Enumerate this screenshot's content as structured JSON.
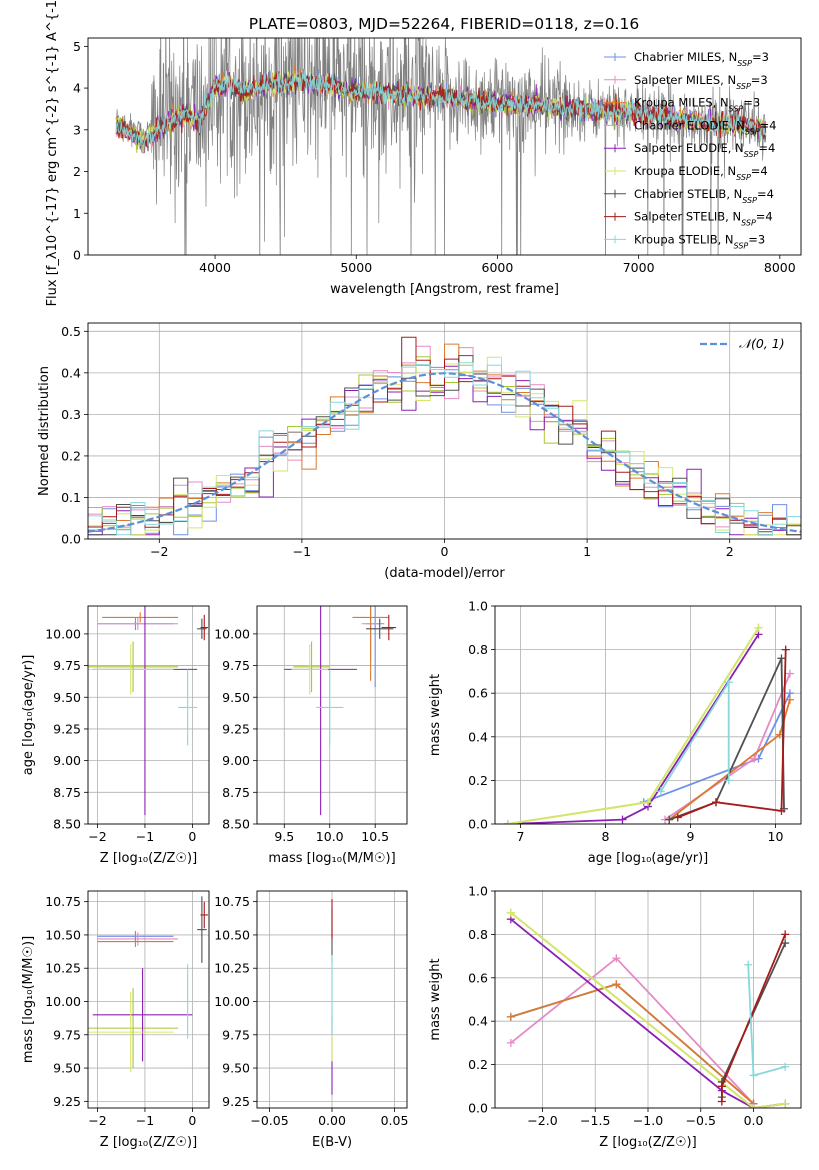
{
  "figure_title": "PLATE=0803, MJD=52264, FIBERID=0118, z=0.16",
  "colors": {
    "Chabrier MILES": "#6f8fe8",
    "Salpeter MILES": "#e58bc4",
    "Kroupa MILES": "#d97a2e",
    "Chabrier ELODIE": "#a8c832",
    "Salpeter ELODIE": "#8b1fb5",
    "Kroupa ELODIE": "#d6e66a",
    "Chabrier STELIB": "#505050",
    "Salpeter STELIB": "#a81a1a",
    "Kroupa STELIB": "#86d8dc",
    "data": "#808080",
    "normal": "#5b8fd6"
  },
  "chart_data": [
    {
      "id": "spectrum",
      "type": "line",
      "xlabel": "wavelength [Angstrom, rest frame]",
      "ylabel": "Flux [f_λ10^{-17} erg cm^{-2} s^{-1} A^{-1}]",
      "xlim": [
        3100,
        8150
      ],
      "ylim": [
        0,
        5.2
      ],
      "xticks": [
        4000,
        5000,
        6000,
        7000,
        8000
      ],
      "yticks": [
        0,
        1,
        2,
        3,
        4,
        5
      ],
      "legend_position": "right",
      "series_names": [
        "Chabrier MILES, N_SSP=3",
        "Salpeter MILES, N_SSP=3",
        "Kroupa MILES, N_SSP=3",
        "Chabrier ELODIE, N_SSP=4",
        "Salpeter ELODIE, N_SSP=4",
        "Kroupa ELODIE, N_SSP=4",
        "Chabrier STELIB, N_SSP=4",
        "Salpeter STELIB, N_SSP=4",
        "Kroupa STELIB, N_SSP=3"
      ],
      "model_continuum": {
        "x": [
          3300,
          3400,
          3500,
          3600,
          3700,
          3800,
          3900,
          4000,
          4100,
          4200,
          4300,
          4400,
          4500,
          4600,
          4700,
          4800,
          4900,
          5000,
          5200,
          5400,
          5600,
          5800,
          6000,
          6200,
          6400,
          6600,
          6800,
          7000,
          7200,
          7400,
          7600,
          7800,
          7900
        ],
        "y": [
          3.3,
          3.1,
          2.9,
          3.2,
          3.4,
          3.6,
          3.3,
          4.0,
          4.1,
          3.9,
          4.0,
          4.1,
          4.1,
          4.2,
          4.1,
          4.1,
          4.0,
          3.9,
          3.9,
          3.8,
          3.8,
          3.7,
          3.65,
          3.6,
          3.55,
          3.5,
          3.45,
          3.4,
          3.3,
          3.2,
          3.15,
          3.1,
          3.0
        ]
      }
    },
    {
      "id": "residuals",
      "type": "histogram",
      "xlabel": "(data-model)/error",
      "ylabel": "Normed distribution",
      "xlim": [
        -2.5,
        2.5
      ],
      "ylim": [
        0,
        0.52
      ],
      "xticks": [
        -2,
        -1,
        0,
        1,
        2
      ],
      "yticks": [
        0.0,
        0.1,
        0.2,
        0.3,
        0.4,
        0.5
      ],
      "legend": "𝒩(0, 1)",
      "legend_position": "top-right",
      "grid": true
    },
    {
      "id": "age-vs-Z",
      "type": "errorbar",
      "xlabel": "Z [log₁₀(Z/Z☉)]",
      "ylabel": "age [log₁₀(age/yr)]",
      "xlim": [
        -2.2,
        0.35
      ],
      "ylim": [
        8.5,
        10.22
      ],
      "xticks": [
        -2,
        -1,
        0
      ],
      "yticks": [
        8.5,
        8.75,
        9.0,
        9.25,
        9.5,
        9.75,
        10.0
      ],
      "grid": true,
      "points": [
        {
          "model": "Chabrier MILES",
          "x": -1.2,
          "xerr": 0.8,
          "y": 10.08,
          "yerr": 0.05
        },
        {
          "model": "Salpeter MILES",
          "x": -1.15,
          "xerr": 0.85,
          "y": 10.08,
          "yerr": 0.05
        },
        {
          "model": "Kroupa MILES",
          "x": -1.1,
          "xerr": 0.8,
          "y": 10.13,
          "yerr": 0.04
        },
        {
          "model": "Chabrier ELODIE",
          "x": -1.25,
          "xerr": 0.95,
          "y": 9.74,
          "yerr": 0.2
        },
        {
          "model": "Salpeter ELODIE",
          "x": -1.0,
          "xerr": 1.1,
          "y": 9.72,
          "yerr": 1.15
        },
        {
          "model": "Kroupa ELODIE",
          "x": -1.3,
          "xerr": 0.9,
          "y": 9.72,
          "yerr": 0.2
        },
        {
          "model": "Chabrier STELIB",
          "x": 0.2,
          "xerr": 0.1,
          "y": 10.04,
          "yerr": 0.08
        },
        {
          "model": "Salpeter STELIB",
          "x": 0.25,
          "xerr": 0.08,
          "y": 10.05,
          "yerr": 0.1
        },
        {
          "model": "Kroupa STELIB",
          "x": -0.1,
          "xerr": 0.2,
          "y": 9.42,
          "yerr": 0.3
        }
      ]
    },
    {
      "id": "age-vs-mass",
      "type": "errorbar",
      "xlabel": "mass [log₁₀(M/M☉)]",
      "ylabel": "",
      "xlim": [
        9.2,
        10.85
      ],
      "ylim": [
        8.5,
        10.22
      ],
      "xticks": [
        9.5,
        10.0,
        10.5
      ],
      "yticks": [
        8.5,
        8.75,
        9.0,
        9.25,
        9.5,
        9.75,
        10.0
      ],
      "grid": true,
      "points": [
        {
          "model": "Chabrier MILES",
          "x": 10.5,
          "xerr": 0.1,
          "y": 10.08,
          "yerr": 0.5
        },
        {
          "model": "Salpeter MILES",
          "x": 10.45,
          "xerr": 0.1,
          "y": 10.08,
          "yerr": 0.3
        },
        {
          "model": "Kroupa MILES",
          "x": 10.45,
          "xerr": 0.2,
          "y": 10.13,
          "yerr": 0.5
        },
        {
          "model": "Chabrier ELODIE",
          "x": 9.8,
          "xerr": 0.2,
          "y": 9.74,
          "yerr": 0.2
        },
        {
          "model": "Salpeter ELODIE",
          "x": 9.9,
          "xerr": 0.4,
          "y": 9.72,
          "yerr": 1.15
        },
        {
          "model": "Kroupa ELODIE",
          "x": 9.78,
          "xerr": 0.2,
          "y": 9.72,
          "yerr": 0.2
        },
        {
          "model": "Chabrier STELIB",
          "x": 10.55,
          "xerr": 0.15,
          "y": 10.04,
          "yerr": 0.08
        },
        {
          "model": "Salpeter STELIB",
          "x": 10.65,
          "xerr": 0.08,
          "y": 10.05,
          "yerr": 0.1
        },
        {
          "model": "Kroupa STELIB",
          "x": 10.0,
          "xerr": 0.15,
          "y": 9.42,
          "yerr": 0.3
        }
      ]
    },
    {
      "id": "weight-vs-age",
      "type": "line",
      "xlabel": "age [log₁₀(age/yr)]",
      "ylabel": "mass weight",
      "xlim": [
        6.7,
        10.3
      ],
      "ylim": [
        0,
        1.0
      ],
      "xticks": [
        7,
        8,
        9,
        10
      ],
      "yticks": [
        0.0,
        0.2,
        0.4,
        0.6,
        0.8,
        1.0
      ],
      "grid": true,
      "series": [
        {
          "model": "Chabrier MILES",
          "x": [
            8.45,
            9.8,
            10.17
          ],
          "y": [
            0.1,
            0.3,
            0.6
          ]
        },
        {
          "model": "Salpeter MILES",
          "x": [
            8.7,
            9.75,
            10.17
          ],
          "y": [
            0.02,
            0.3,
            0.69
          ]
        },
        {
          "model": "Kroupa MILES",
          "x": [
            8.75,
            10.05,
            10.17
          ],
          "y": [
            0.02,
            0.41,
            0.57
          ]
        },
        {
          "model": "Chabrier ELODIE",
          "x": [
            6.85,
            8.5,
            9.8
          ],
          "y": [
            0.0,
            0.1,
            0.9
          ]
        },
        {
          "model": "Salpeter ELODIE",
          "x": [
            6.85,
            8.2,
            8.5,
            9.8
          ],
          "y": [
            0.0,
            0.02,
            0.08,
            0.87
          ]
        },
        {
          "model": "Kroupa ELODIE",
          "x": [
            6.85,
            8.5,
            9.8
          ],
          "y": [
            0.0,
            0.1,
            0.9
          ]
        },
        {
          "model": "Chabrier STELIB",
          "x": [
            8.75,
            9.3,
            10.07,
            10.1
          ],
          "y": [
            0.02,
            0.1,
            0.76,
            0.07
          ]
        },
        {
          "model": "Salpeter STELIB",
          "x": [
            8.85,
            9.3,
            10.07,
            10.12
          ],
          "y": [
            0.03,
            0.1,
            0.06,
            0.8
          ]
        },
        {
          "model": "Kroupa STELIB",
          "x": [
            8.65,
            9.45,
            9.45
          ],
          "y": [
            0.15,
            0.65,
            0.2
          ]
        }
      ]
    },
    {
      "id": "mass-vs-Z",
      "type": "errorbar",
      "xlabel": "Z [log₁₀(Z/Z☉)]",
      "ylabel": "mass [log₁₀(M/M☉)]",
      "xlim": [
        -2.2,
        0.35
      ],
      "ylim": [
        9.2,
        10.83
      ],
      "xticks": [
        -2,
        -1,
        0
      ],
      "yticks": [
        9.25,
        9.5,
        9.75,
        10.0,
        10.25,
        10.5,
        10.75
      ],
      "grid": true,
      "points": [
        {
          "model": "Chabrier MILES",
          "x": -1.2,
          "xerr": 0.8,
          "y": 10.49,
          "yerr": 0.04
        },
        {
          "model": "Salpeter MILES",
          "x": -1.15,
          "xerr": 0.85,
          "y": 10.47,
          "yerr": 0.05
        },
        {
          "model": "Kroupa MILES",
          "x": -1.2,
          "xerr": 0.8,
          "y": 10.45,
          "yerr": 0.04
        },
        {
          "model": "Chabrier ELODIE",
          "x": -1.25,
          "xerr": 0.95,
          "y": 9.8,
          "yerr": 0.3
        },
        {
          "model": "Salpeter ELODIE",
          "x": -1.05,
          "xerr": 1.05,
          "y": 9.9,
          "yerr": 0.35
        },
        {
          "model": "Kroupa ELODIE",
          "x": -1.3,
          "xerr": 0.9,
          "y": 9.77,
          "yerr": 0.3
        },
        {
          "model": "Chabrier STELIB",
          "x": 0.2,
          "xerr": 0.1,
          "y": 10.54,
          "yerr": 0.25
        },
        {
          "model": "Salpeter STELIB",
          "x": 0.25,
          "xerr": 0.08,
          "y": 10.65,
          "yerr": 0.1
        },
        {
          "model": "Kroupa STELIB",
          "x": -0.1,
          "xerr": 0.2,
          "y": 10.0,
          "yerr": 0.28
        }
      ]
    },
    {
      "id": "mass-vs-ebv",
      "type": "errorbar",
      "xlabel": "E(B-V)",
      "ylabel": "",
      "xlim": [
        -0.06,
        0.06
      ],
      "ylim": [
        9.2,
        10.83
      ],
      "xticks": [
        -0.05,
        0.0,
        0.05
      ],
      "yticks": [
        9.25,
        9.5,
        9.75,
        10.0,
        10.25,
        10.5,
        10.75
      ],
      "grid": true,
      "points": [
        {
          "model": "Chabrier STELIB",
          "x": 0.0,
          "y": 10.5,
          "yerr": 0.2
        },
        {
          "model": "Salpeter STELIB",
          "x": 0.0,
          "y": 10.62,
          "yerr": 0.15
        },
        {
          "model": "Salpeter ELODIE",
          "x": 0.0,
          "y": 9.6,
          "yerr": 0.3
        },
        {
          "model": "Kroupa ELODIE",
          "x": 0.0,
          "y": 9.9,
          "yerr": 0.35
        },
        {
          "model": "Kroupa STELIB",
          "x": 0.0,
          "y": 10.05,
          "yerr": 0.3
        }
      ]
    },
    {
      "id": "weight-vs-Z",
      "type": "line",
      "xlabel": "Z [log₁₀(Z/Z☉)]",
      "ylabel": "mass weight",
      "xlim": [
        -2.45,
        0.45
      ],
      "ylim": [
        0,
        1.0
      ],
      "xticks": [
        -2.0,
        -1.5,
        -1.0,
        -0.5,
        0.0
      ],
      "yticks": [
        0.0,
        0.2,
        0.4,
        0.6,
        0.8,
        1.0
      ],
      "grid": true,
      "series": [
        {
          "model": "Chabrier MILES",
          "x": [
            -2.3,
            -1.3,
            0.0
          ],
          "y": [
            0.42,
            0.57,
            0.02
          ]
        },
        {
          "model": "Salpeter MILES",
          "x": [
            -2.3,
            -1.3,
            0.0
          ],
          "y": [
            0.3,
            0.69,
            0.02
          ]
        },
        {
          "model": "Kroupa MILES",
          "x": [
            -2.3,
            -1.3,
            0.0
          ],
          "y": [
            0.42,
            0.57,
            0.02
          ]
        },
        {
          "model": "Chabrier ELODIE",
          "x": [
            -2.3,
            0.0,
            0.3
          ],
          "y": [
            0.9,
            0.0,
            0.02
          ]
        },
        {
          "model": "Salpeter ELODIE",
          "x": [
            -2.3,
            -0.3,
            0.0,
            0.3
          ],
          "y": [
            0.87,
            0.08,
            0.0,
            0.02
          ]
        },
        {
          "model": "Kroupa ELODIE",
          "x": [
            -2.3,
            0.0,
            0.3
          ],
          "y": [
            0.9,
            0.0,
            0.02
          ]
        },
        {
          "model": "Chabrier STELIB",
          "x": [
            -0.3,
            -0.3,
            0.3
          ],
          "y": [
            0.05,
            0.12,
            0.76
          ]
        },
        {
          "model": "Salpeter STELIB",
          "x": [
            -0.3,
            -0.3,
            0.3
          ],
          "y": [
            0.03,
            0.1,
            0.8
          ]
        },
        {
          "model": "Kroupa STELIB",
          "x": [
            -0.05,
            0.0,
            0.3
          ],
          "y": [
            0.66,
            0.15,
            0.19
          ]
        }
      ]
    }
  ]
}
